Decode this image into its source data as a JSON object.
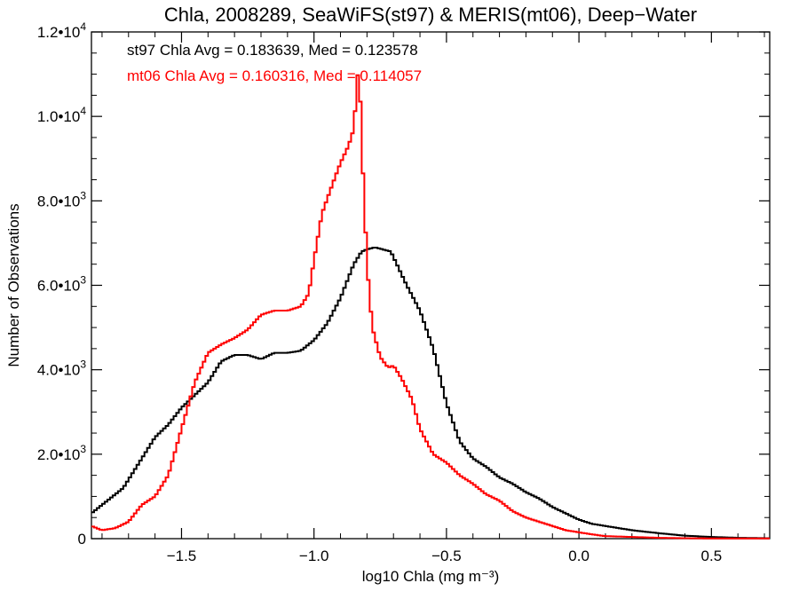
{
  "chart_data": {
    "type": "line",
    "title": "Chla, 2008289, SeaWiFS(st97) & MERIS(mt06), Deep−Water",
    "xlabel": "log10 Chla (mg m⁻³)",
    "ylabel": "Number of Observations",
    "xlim": [
      -1.84,
      0.72
    ],
    "ylim": [
      0,
      12000
    ],
    "x_ticks": [
      {
        "value": -1.5,
        "label": "−1.5"
      },
      {
        "value": -1.0,
        "label": "−1.0"
      },
      {
        "value": -0.5,
        "label": "−0.5"
      },
      {
        "value": 0.0,
        "label": "0.0"
      },
      {
        "value": 0.5,
        "label": "0.5"
      }
    ],
    "y_ticks": [
      {
        "value": 0,
        "mant": "0",
        "exp": ""
      },
      {
        "value": 2000,
        "mant": "2.0•10",
        "exp": "3"
      },
      {
        "value": 4000,
        "mant": "4.0•10",
        "exp": "3"
      },
      {
        "value": 6000,
        "mant": "6.0•10",
        "exp": "3"
      },
      {
        "value": 8000,
        "mant": "8.0•10",
        "exp": "3"
      },
      {
        "value": 10000,
        "mant": "1.0•10",
        "exp": "4"
      },
      {
        "value": 12000,
        "mant": "1.2•10",
        "exp": "4"
      }
    ],
    "grid": false,
    "annotations": [
      {
        "text": "st97 Chla Avg = 0.183639, Med = 0.123578",
        "color": "#000000"
      },
      {
        "text": "mt06 Chla Avg = 0.160316, Med = 0.114057",
        "color": "#ff0000"
      }
    ],
    "series": [
      {
        "color": "#000000",
        "step": true,
        "x": [
          -1.84,
          -1.78,
          -1.72,
          -1.66,
          -1.6,
          -1.55,
          -1.5,
          -1.45,
          -1.4,
          -1.35,
          -1.3,
          -1.25,
          -1.2,
          -1.15,
          -1.1,
          -1.05,
          -1.0,
          -0.95,
          -0.9,
          -0.85,
          -0.82,
          -0.8,
          -0.77,
          -0.74,
          -0.71,
          -0.68,
          -0.65,
          -0.6,
          -0.55,
          -0.5,
          -0.45,
          -0.4,
          -0.35,
          -0.3,
          -0.25,
          -0.2,
          -0.15,
          -0.1,
          -0.05,
          0.0,
          0.05,
          0.1,
          0.2,
          0.3,
          0.4,
          0.5,
          0.6,
          0.72
        ],
        "y": [
          600,
          900,
          1200,
          1800,
          2400,
          2700,
          3100,
          3400,
          3700,
          4200,
          4350,
          4350,
          4250,
          4400,
          4400,
          4450,
          4700,
          5100,
          5700,
          6500,
          6800,
          6850,
          6900,
          6850,
          6800,
          6400,
          6000,
          5400,
          4500,
          3200,
          2300,
          1900,
          1700,
          1450,
          1300,
          1100,
          950,
          750,
          600,
          450,
          350,
          300,
          200,
          130,
          70,
          40,
          20,
          10
        ]
      },
      {
        "color": "#ff0000",
        "step": true,
        "x": [
          -1.84,
          -1.8,
          -1.75,
          -1.7,
          -1.65,
          -1.6,
          -1.55,
          -1.5,
          -1.45,
          -1.4,
          -1.35,
          -1.3,
          -1.25,
          -1.2,
          -1.15,
          -1.1,
          -1.05,
          -1.02,
          -1.0,
          -0.97,
          -0.93,
          -0.9,
          -0.87,
          -0.85,
          -0.83,
          -0.82,
          -0.81,
          -0.8,
          -0.78,
          -0.75,
          -0.72,
          -0.7,
          -0.67,
          -0.63,
          -0.6,
          -0.55,
          -0.5,
          -0.45,
          -0.4,
          -0.35,
          -0.3,
          -0.25,
          -0.2,
          -0.15,
          -0.1,
          -0.05,
          0.0,
          0.05,
          0.1,
          0.2,
          0.3,
          0.4,
          0.5,
          0.6,
          0.72
        ],
        "y": [
          300,
          200,
          250,
          400,
          800,
          1000,
          1500,
          2600,
          3700,
          4400,
          4600,
          4750,
          4950,
          5300,
          5400,
          5400,
          5500,
          5800,
          6600,
          7700,
          8400,
          8900,
          9300,
          9700,
          11400,
          9300,
          8000,
          6500,
          5000,
          4300,
          4050,
          4100,
          3800,
          3300,
          2600,
          2000,
          1800,
          1500,
          1300,
          1050,
          900,
          650,
          500,
          400,
          300,
          200,
          150,
          100,
          60,
          40,
          20,
          10,
          5,
          5,
          5
        ]
      }
    ]
  }
}
